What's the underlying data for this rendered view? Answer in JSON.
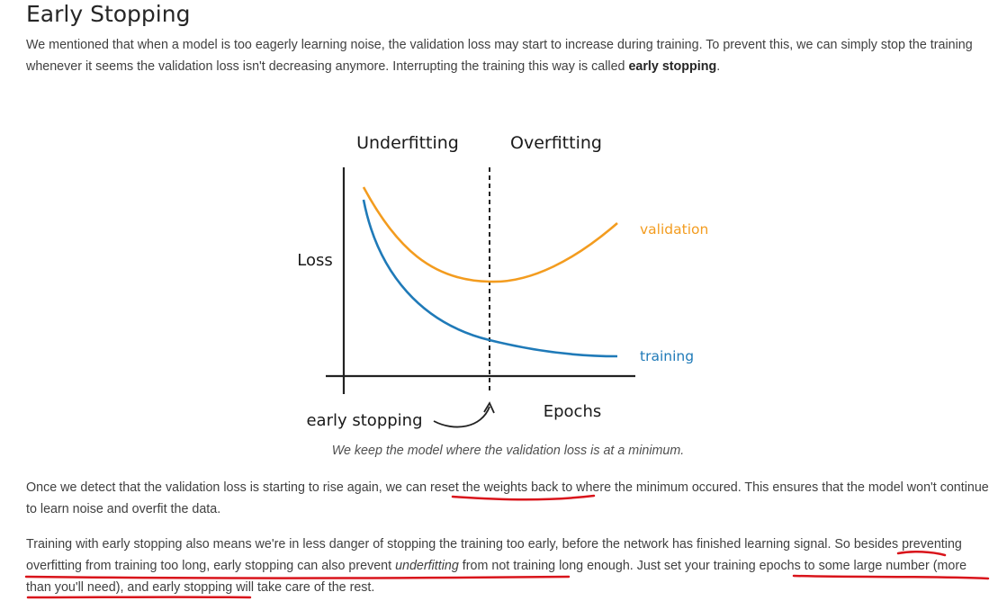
{
  "heading": "Early Stopping",
  "intro": {
    "text": "We mentioned that when a model is too eagerly learning noise, the validation loss may start to increase during training. To prevent this, we can simply stop the training whenever it seems the validation loss isn't decreasing anymore. Interrupting the training this way is called ",
    "bold": "early stopping",
    "end": "."
  },
  "figure": {
    "label_underfitting": "Underfitting",
    "label_overfitting": "Overfitting",
    "label_loss": "Loss",
    "label_validation": "validation",
    "label_training": "training",
    "label_epochs": "Epochs",
    "label_early_stopping": "early stopping",
    "colors": {
      "validation": "#f39c1f",
      "training": "#1f7ab8",
      "axis": "#222222",
      "annotation_underline": "#d9141b"
    }
  },
  "caption": "We keep the model where the validation loss is at a minimum.",
  "para2": {
    "a": "Once we detect that the validation loss is starting to rise again, we can ",
    "b": "reset the weights back to",
    "c": " where the minimum occured. This ensures that the model won't continue to learn noise and overfit the data."
  },
  "para3": {
    "a": "Training with early stopping also means we're in less danger of stopping the training too early, before the network has finished learning signal. So besides preventing overfitting from training too long, early stopping can also prevent ",
    "italic": "underfitting",
    "b": " from not training long enough. Just set your training epochs to some large number (more than you'll need), and early stopping will take care of the rest."
  }
}
